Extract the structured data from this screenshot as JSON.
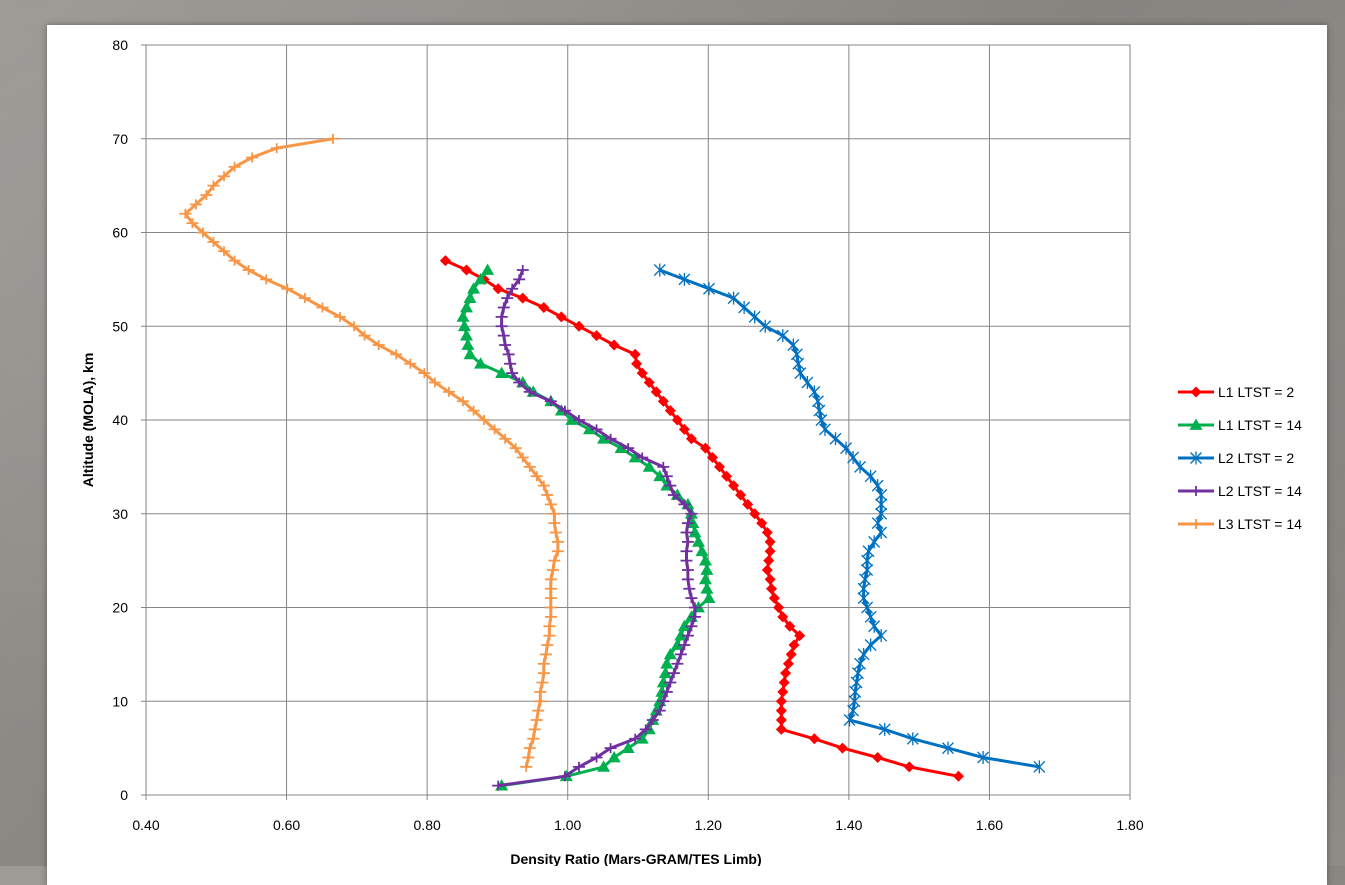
{
  "chart_data": {
    "type": "line",
    "xlabel": "Density Ratio (Mars-GRAM/TES Limb)",
    "ylabel": "Altitude (MOLA), km",
    "xlim": [
      0.4,
      1.8
    ],
    "ylim": [
      0,
      80
    ],
    "x_ticks": [
      "0.40",
      "0.60",
      "0.80",
      "1.00",
      "1.20",
      "1.40",
      "1.60",
      "1.80"
    ],
    "y_ticks": [
      "0",
      "10",
      "20",
      "30",
      "40",
      "50",
      "60",
      "70",
      "80"
    ],
    "grid": true,
    "legend_position": "right",
    "series": [
      {
        "name": "L1 LTST = 2",
        "color": "#ff0000",
        "marker": "diamond",
        "points": [
          [
            0.826,
            57
          ],
          [
            0.856,
            56
          ],
          [
            0.881,
            55
          ],
          [
            0.901,
            54
          ],
          [
            0.936,
            53
          ],
          [
            0.966,
            52
          ],
          [
            0.991,
            51
          ],
          [
            1.016,
            50
          ],
          [
            1.041,
            49
          ],
          [
            1.066,
            48
          ],
          [
            1.096,
            47
          ],
          [
            1.098,
            46
          ],
          [
            1.106,
            45
          ],
          [
            1.116,
            44
          ],
          [
            1.126,
            43
          ],
          [
            1.136,
            42
          ],
          [
            1.146,
            41
          ],
          [
            1.156,
            40
          ],
          [
            1.166,
            39
          ],
          [
            1.176,
            38
          ],
          [
            1.196,
            37
          ],
          [
            1.206,
            36
          ],
          [
            1.216,
            35
          ],
          [
            1.226,
            34
          ],
          [
            1.236,
            33
          ],
          [
            1.246,
            32
          ],
          [
            1.256,
            31
          ],
          [
            1.266,
            30
          ],
          [
            1.276,
            29
          ],
          [
            1.284,
            28
          ],
          [
            1.288,
            27
          ],
          [
            1.288,
            26
          ],
          [
            1.286,
            25
          ],
          [
            1.284,
            24
          ],
          [
            1.288,
            23
          ],
          [
            1.29,
            22
          ],
          [
            1.294,
            21
          ],
          [
            1.3,
            20
          ],
          [
            1.306,
            19
          ],
          [
            1.316,
            18
          ],
          [
            1.33,
            17
          ],
          [
            1.322,
            16
          ],
          [
            1.318,
            15
          ],
          [
            1.314,
            14
          ],
          [
            1.31,
            13
          ],
          [
            1.308,
            12
          ],
          [
            1.306,
            11
          ],
          [
            1.304,
            10
          ],
          [
            1.304,
            9
          ],
          [
            1.304,
            8
          ],
          [
            1.304,
            7
          ],
          [
            1.351,
            6
          ],
          [
            1.391,
            5
          ],
          [
            1.441,
            4
          ],
          [
            1.486,
            3
          ],
          [
            1.556,
            2
          ]
        ]
      },
      {
        "name": "L1 LTST = 14",
        "color": "#00b050",
        "marker": "triangle",
        "points": [
          [
            0.886,
            56
          ],
          [
            0.876,
            55
          ],
          [
            0.866,
            54
          ],
          [
            0.861,
            53
          ],
          [
            0.856,
            52
          ],
          [
            0.851,
            51
          ],
          [
            0.853,
            50
          ],
          [
            0.856,
            49
          ],
          [
            0.858,
            48
          ],
          [
            0.861,
            47
          ],
          [
            0.876,
            46
          ],
          [
            0.906,
            45
          ],
          [
            0.936,
            44
          ],
          [
            0.951,
            43
          ],
          [
            0.976,
            42
          ],
          [
            0.991,
            41
          ],
          [
            1.006,
            40
          ],
          [
            1.031,
            39
          ],
          [
            1.051,
            38
          ],
          [
            1.076,
            37
          ],
          [
            1.096,
            36
          ],
          [
            1.116,
            35
          ],
          [
            1.131,
            34
          ],
          [
            1.141,
            33
          ],
          [
            1.156,
            32
          ],
          [
            1.171,
            31
          ],
          [
            1.176,
            30
          ],
          [
            1.178,
            29
          ],
          [
            1.181,
            28
          ],
          [
            1.186,
            27
          ],
          [
            1.191,
            26
          ],
          [
            1.196,
            25
          ],
          [
            1.198,
            24
          ],
          [
            1.196,
            23
          ],
          [
            1.198,
            22
          ],
          [
            1.201,
            21
          ],
          [
            1.186,
            20
          ],
          [
            1.176,
            19
          ],
          [
            1.166,
            18
          ],
          [
            1.161,
            17
          ],
          [
            1.156,
            16
          ],
          [
            1.146,
            15
          ],
          [
            1.141,
            14
          ],
          [
            1.139,
            13
          ],
          [
            1.136,
            12
          ],
          [
            1.134,
            11
          ],
          [
            1.131,
            10
          ],
          [
            1.126,
            9
          ],
          [
            1.121,
            8
          ],
          [
            1.116,
            7
          ],
          [
            1.106,
            6
          ],
          [
            1.086,
            5
          ],
          [
            1.066,
            4
          ],
          [
            1.051,
            3
          ],
          [
            0.998,
            2
          ],
          [
            0.906,
            1
          ]
        ]
      },
      {
        "name": "L2 LTST = 2",
        "color": "#0070c0",
        "marker": "star",
        "points": [
          [
            1.131,
            56
          ],
          [
            1.166,
            55
          ],
          [
            1.201,
            54
          ],
          [
            1.236,
            53
          ],
          [
            1.251,
            52
          ],
          [
            1.266,
            51
          ],
          [
            1.281,
            50
          ],
          [
            1.306,
            49
          ],
          [
            1.321,
            48
          ],
          [
            1.326,
            47
          ],
          [
            1.328,
            46
          ],
          [
            1.331,
            45
          ],
          [
            1.341,
            44
          ],
          [
            1.351,
            43
          ],
          [
            1.356,
            42
          ],
          [
            1.358,
            41
          ],
          [
            1.361,
            40
          ],
          [
            1.366,
            39
          ],
          [
            1.381,
            38
          ],
          [
            1.396,
            37
          ],
          [
            1.406,
            36
          ],
          [
            1.416,
            35
          ],
          [
            1.431,
            34
          ],
          [
            1.441,
            33
          ],
          [
            1.446,
            32
          ],
          [
            1.446,
            31
          ],
          [
            1.446,
            30
          ],
          [
            1.441,
            29
          ],
          [
            1.446,
            28
          ],
          [
            1.436,
            27
          ],
          [
            1.428,
            26
          ],
          [
            1.426,
            25
          ],
          [
            1.426,
            24
          ],
          [
            1.423,
            23
          ],
          [
            1.421,
            22
          ],
          [
            1.421,
            21
          ],
          [
            1.426,
            20
          ],
          [
            1.431,
            19
          ],
          [
            1.436,
            18
          ],
          [
            1.446,
            17
          ],
          [
            1.431,
            16
          ],
          [
            1.421,
            15
          ],
          [
            1.416,
            14
          ],
          [
            1.413,
            13
          ],
          [
            1.411,
            12
          ],
          [
            1.409,
            11
          ],
          [
            1.408,
            10
          ],
          [
            1.406,
            9
          ],
          [
            1.401,
            8
          ],
          [
            1.451,
            7
          ],
          [
            1.491,
            6
          ],
          [
            1.541,
            5
          ],
          [
            1.591,
            4
          ],
          [
            1.671,
            3
          ]
        ]
      },
      {
        "name": "L2 LTST = 14",
        "color": "#7030a0",
        "marker": "plus",
        "points": [
          [
            0.936,
            56
          ],
          [
            0.931,
            55
          ],
          [
            0.921,
            54
          ],
          [
            0.914,
            53
          ],
          [
            0.909,
            52
          ],
          [
            0.906,
            51
          ],
          [
            0.906,
            50
          ],
          [
            0.909,
            49
          ],
          [
            0.911,
            48
          ],
          [
            0.916,
            47
          ],
          [
            0.918,
            46
          ],
          [
            0.921,
            45
          ],
          [
            0.931,
            44
          ],
          [
            0.946,
            43
          ],
          [
            0.976,
            42
          ],
          [
            0.996,
            41
          ],
          [
            1.016,
            40
          ],
          [
            1.041,
            39
          ],
          [
            1.061,
            38
          ],
          [
            1.086,
            37
          ],
          [
            1.106,
            36
          ],
          [
            1.136,
            35
          ],
          [
            1.141,
            34
          ],
          [
            1.146,
            33
          ],
          [
            1.151,
            32
          ],
          [
            1.166,
            31
          ],
          [
            1.176,
            30
          ],
          [
            1.171,
            29
          ],
          [
            1.169,
            28
          ],
          [
            1.171,
            27
          ],
          [
            1.169,
            26
          ],
          [
            1.169,
            25
          ],
          [
            1.171,
            24
          ],
          [
            1.171,
            23
          ],
          [
            1.173,
            22
          ],
          [
            1.176,
            21
          ],
          [
            1.181,
            20
          ],
          [
            1.181,
            19
          ],
          [
            1.176,
            18
          ],
          [
            1.171,
            17
          ],
          [
            1.166,
            16
          ],
          [
            1.161,
            15
          ],
          [
            1.156,
            14
          ],
          [
            1.151,
            13
          ],
          [
            1.146,
            12
          ],
          [
            1.141,
            11
          ],
          [
            1.136,
            10
          ],
          [
            1.131,
            9
          ],
          [
            1.121,
            8
          ],
          [
            1.111,
            7
          ],
          [
            1.096,
            6
          ],
          [
            1.061,
            5
          ],
          [
            1.041,
            4
          ],
          [
            1.016,
            3
          ],
          [
            0.996,
            2
          ],
          [
            0.901,
            1
          ]
        ]
      },
      {
        "name": "L3 LTST = 14",
        "color": "#f79646",
        "marker": "plus",
        "points": [
          [
            0.666,
            70
          ],
          [
            0.586,
            69
          ],
          [
            0.551,
            68
          ],
          [
            0.526,
            67
          ],
          [
            0.511,
            66
          ],
          [
            0.496,
            65
          ],
          [
            0.486,
            64
          ],
          [
            0.471,
            63
          ],
          [
            0.456,
            62
          ],
          [
            0.466,
            61
          ],
          [
            0.481,
            60
          ],
          [
            0.496,
            59
          ],
          [
            0.511,
            58
          ],
          [
            0.526,
            57
          ],
          [
            0.546,
            56
          ],
          [
            0.571,
            55
          ],
          [
            0.601,
            54
          ],
          [
            0.626,
            53
          ],
          [
            0.651,
            52
          ],
          [
            0.676,
            51
          ],
          [
            0.696,
            50
          ],
          [
            0.711,
            49
          ],
          [
            0.731,
            48
          ],
          [
            0.756,
            47
          ],
          [
            0.776,
            46
          ],
          [
            0.796,
            45
          ],
          [
            0.811,
            44
          ],
          [
            0.831,
            43
          ],
          [
            0.851,
            42
          ],
          [
            0.866,
            41
          ],
          [
            0.881,
            40
          ],
          [
            0.896,
            39
          ],
          [
            0.911,
            38
          ],
          [
            0.926,
            37
          ],
          [
            0.936,
            36
          ],
          [
            0.946,
            35
          ],
          [
            0.956,
            34
          ],
          [
            0.966,
            33
          ],
          [
            0.971,
            32
          ],
          [
            0.976,
            31
          ],
          [
            0.981,
            30
          ],
          [
            0.981,
            29
          ],
          [
            0.983,
            28
          ],
          [
            0.986,
            27
          ],
          [
            0.986,
            26
          ],
          [
            0.981,
            25
          ],
          [
            0.979,
            24
          ],
          [
            0.976,
            23
          ],
          [
            0.976,
            22
          ],
          [
            0.976,
            21
          ],
          [
            0.976,
            20
          ],
          [
            0.976,
            19
          ],
          [
            0.974,
            18
          ],
          [
            0.974,
            17
          ],
          [
            0.971,
            16
          ],
          [
            0.969,
            15
          ],
          [
            0.966,
            14
          ],
          [
            0.966,
            13
          ],
          [
            0.964,
            12
          ],
          [
            0.961,
            11
          ],
          [
            0.961,
            10
          ],
          [
            0.958,
            9
          ],
          [
            0.956,
            8
          ],
          [
            0.953,
            7
          ],
          [
            0.951,
            6
          ],
          [
            0.946,
            5
          ],
          [
            0.944,
            4
          ],
          [
            0.941,
            3
          ]
        ]
      }
    ]
  }
}
